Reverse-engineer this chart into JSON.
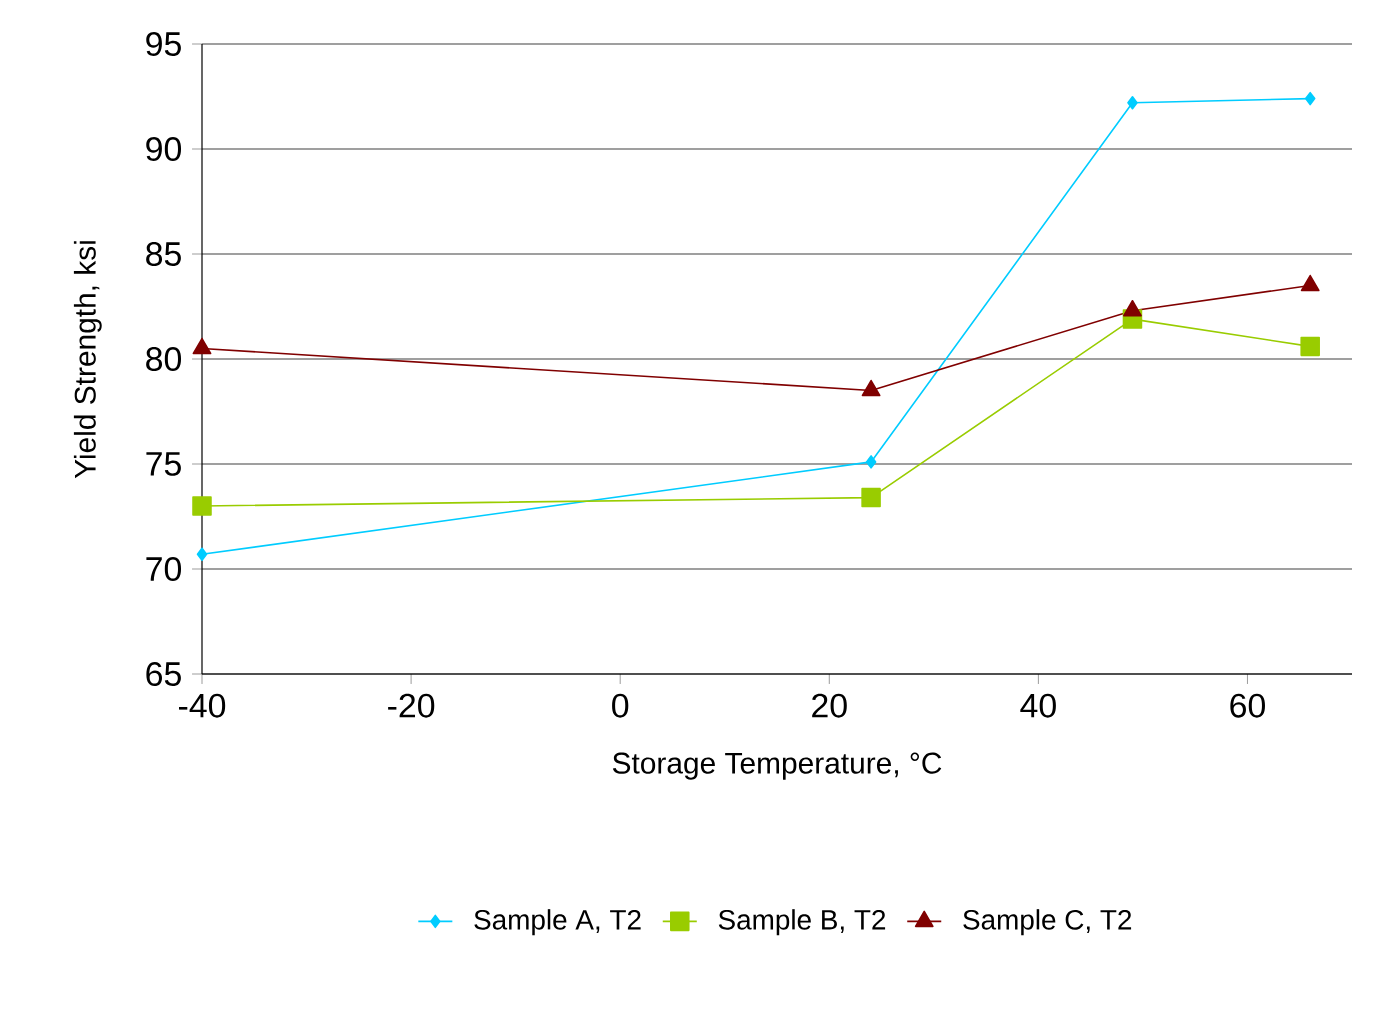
{
  "chart_data": {
    "type": "line",
    "xlabel": "Storage Temperature, °C",
    "ylabel": "Yield Strength, ksi",
    "xlim": [
      -40,
      70
    ],
    "xticks": [
      -40,
      -20,
      0,
      20,
      40,
      60
    ],
    "ylim": [
      65,
      95
    ],
    "yticks": [
      65,
      70,
      75,
      80,
      85,
      90,
      95
    ],
    "grid": "y",
    "legend": "bottom",
    "series": [
      {
        "name": "Sample A, T2",
        "color": "#00ccff",
        "marker": "diamond",
        "x": [
          -40,
          24,
          49,
          66
        ],
        "values": [
          70.7,
          75.1,
          92.2,
          92.4
        ]
      },
      {
        "name": "Sample B, T2",
        "color": "#99cc00",
        "marker": "square",
        "x": [
          -40,
          24,
          49,
          66
        ],
        "values": [
          73.0,
          73.4,
          81.9,
          80.6
        ]
      },
      {
        "name": "Sample C, T2",
        "color": "#800000",
        "marker": "triangle",
        "x": [
          -40,
          24,
          49,
          66
        ],
        "values": [
          80.5,
          78.5,
          82.3,
          83.5
        ]
      }
    ]
  }
}
